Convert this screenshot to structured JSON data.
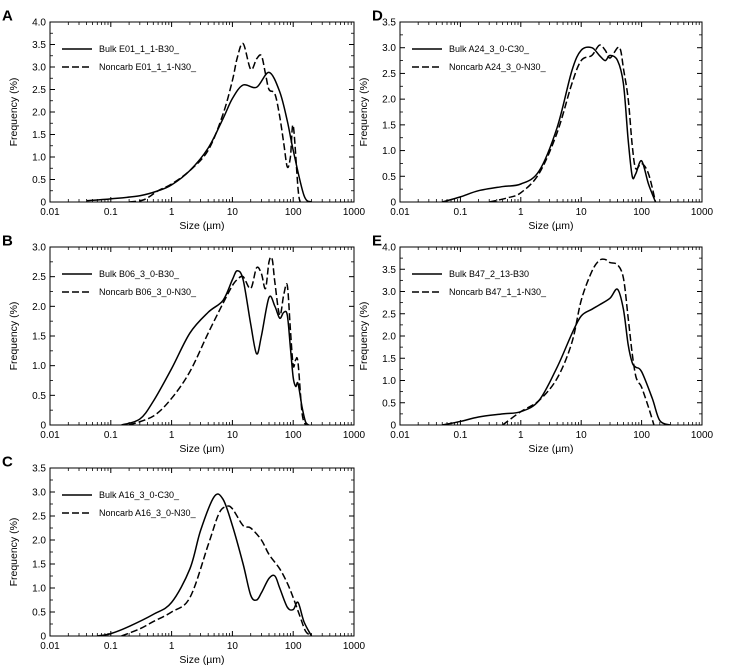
{
  "chart_data": [
    {
      "panel": "A",
      "type": "line",
      "xlabel": "Size (µm)",
      "ylabel": "Frequency (%)",
      "xscale": "log",
      "xlim": [
        0.01,
        1000
      ],
      "ylim": [
        0,
        4.0
      ],
      "xticks": [
        "0.01",
        "0.1",
        "1",
        "10",
        "100",
        "1000"
      ],
      "yticks": [
        "0",
        "0.5",
        "1.0",
        "1.5",
        "2.0",
        "2.5",
        "3.0",
        "3.5",
        "4.0"
      ],
      "legend_position": "top-left",
      "series": [
        {
          "name": "Bulk E01_1_1-B30_",
          "style": "solid",
          "x": [
            0.04,
            0.1,
            0.3,
            0.6,
            1,
            2,
            4,
            7,
            10,
            15,
            25,
            40,
            60,
            80,
            100,
            150,
            200
          ],
          "y": [
            0.03,
            0.07,
            0.14,
            0.25,
            0.38,
            0.7,
            1.2,
            1.85,
            2.3,
            2.6,
            2.55,
            2.88,
            2.45,
            1.8,
            1.15,
            0.15,
            0.0
          ]
        },
        {
          "name": "Noncarb E01_1_1-N30_",
          "style": "dashed",
          "x": [
            0.2,
            0.35,
            0.6,
            1,
            2,
            4,
            7,
            10,
            12,
            15,
            20,
            25,
            30,
            35,
            40,
            50,
            60,
            70,
            80,
            90,
            100,
            120,
            130
          ],
          "y": [
            0.0,
            0.05,
            0.25,
            0.4,
            0.7,
            1.15,
            1.95,
            2.7,
            3.2,
            3.52,
            2.95,
            3.18,
            3.25,
            2.85,
            2.5,
            2.4,
            1.9,
            1.3,
            0.78,
            1.0,
            1.7,
            0.3,
            0.0
          ]
        }
      ]
    },
    {
      "panel": "B",
      "type": "line",
      "xlabel": "Size (µm)",
      "ylabel": "Frequency (%)",
      "xscale": "log",
      "xlim": [
        0.01,
        1000
      ],
      "ylim": [
        0,
        3.0
      ],
      "xticks": [
        "0.01",
        "0.1",
        "1",
        "10",
        "100",
        "1000"
      ],
      "yticks": [
        "0",
        "0.5",
        "1.0",
        "1.5",
        "2.0",
        "2.5",
        "3.0"
      ],
      "legend_position": "top-left",
      "series": [
        {
          "name": "Bulk B06_3_0-B30_",
          "style": "solid",
          "x": [
            0.15,
            0.3,
            0.5,
            1,
            2,
            4,
            7,
            10,
            12,
            15,
            20,
            25,
            30,
            40,
            50,
            60,
            70,
            80,
            90,
            100,
            110,
            120,
            140,
            160,
            180
          ],
          "y": [
            0.0,
            0.1,
            0.4,
            0.95,
            1.55,
            1.9,
            2.1,
            2.45,
            2.6,
            2.45,
            1.7,
            1.2,
            1.5,
            2.15,
            2.0,
            1.8,
            1.9,
            1.85,
            1.3,
            0.8,
            0.65,
            0.7,
            0.3,
            0.05,
            0.0
          ]
        },
        {
          "name": "Noncarb B06_3_0-N30_",
          "style": "dashed",
          "x": [
            0.2,
            0.5,
            1,
            2,
            4,
            7,
            10,
            12,
            15,
            20,
            25,
            30,
            35,
            40,
            45,
            50,
            60,
            70,
            80,
            90,
            100,
            110,
            120,
            140,
            160
          ],
          "y": [
            0.0,
            0.15,
            0.45,
            0.9,
            1.55,
            2.05,
            2.35,
            2.45,
            2.5,
            2.3,
            2.65,
            2.55,
            2.3,
            2.75,
            2.8,
            2.4,
            1.85,
            2.2,
            2.35,
            1.6,
            1.0,
            1.1,
            1.05,
            0.2,
            0.0
          ]
        }
      ]
    },
    {
      "panel": "C",
      "type": "line",
      "xlabel": "Size (µm)",
      "ylabel": "Frequency (%)",
      "xscale": "log",
      "xlim": [
        0.01,
        1000
      ],
      "ylim": [
        0,
        3.5
      ],
      "xticks": [
        "0.01",
        "0.1",
        "1",
        "10",
        "100",
        "1000"
      ],
      "yticks": [
        "0",
        "0.5",
        "1.0",
        "1.5",
        "2.0",
        "2.5",
        "3.0",
        "3.5"
      ],
      "legend_position": "top-left",
      "series": [
        {
          "name": "Bulk A16_3_0-C30_",
          "style": "solid",
          "x": [
            0.06,
            0.1,
            0.2,
            0.5,
            1,
            2,
            3,
            5,
            7,
            10,
            15,
            20,
            25,
            30,
            40,
            50,
            60,
            80,
            100,
            120,
            150,
            200
          ],
          "y": [
            0.0,
            0.05,
            0.2,
            0.45,
            0.7,
            1.4,
            2.2,
            2.9,
            2.85,
            2.3,
            1.5,
            0.85,
            0.75,
            0.9,
            1.2,
            1.25,
            1.0,
            0.6,
            0.55,
            0.7,
            0.3,
            0.0
          ]
        },
        {
          "name": "Noncarb A16_3_0-N30_",
          "style": "dashed",
          "x": [
            0.15,
            0.3,
            0.5,
            1,
            2,
            4,
            6,
            8,
            10,
            15,
            20,
            30,
            40,
            60,
            80,
            100,
            130,
            160,
            200
          ],
          "y": [
            0.0,
            0.15,
            0.3,
            0.5,
            0.8,
            1.9,
            2.55,
            2.7,
            2.65,
            2.3,
            2.25,
            2.0,
            1.7,
            1.4,
            1.1,
            0.8,
            0.4,
            0.1,
            0.0
          ]
        }
      ]
    },
    {
      "panel": "D",
      "type": "line",
      "xlabel": "Size (µm)",
      "ylabel": "Frequency (%)",
      "xscale": "log",
      "xlim": [
        0.01,
        1000
      ],
      "ylim": [
        0,
        3.5
      ],
      "xticks": [
        "0.01",
        "0.1",
        "1",
        "10",
        "100",
        "1000"
      ],
      "yticks": [
        "0",
        "0.5",
        "1.0",
        "1.5",
        "2.0",
        "2.5",
        "3.0",
        "3.5"
      ],
      "legend_position": "top-left",
      "series": [
        {
          "name": "Bulk A24_3_0-C30_",
          "style": "solid",
          "x": [
            0.05,
            0.1,
            0.2,
            0.5,
            1,
            2,
            4,
            7,
            10,
            15,
            20,
            25,
            30,
            40,
            50,
            60,
            70,
            80,
            100,
            130,
            170
          ],
          "y": [
            0.0,
            0.1,
            0.22,
            0.3,
            0.35,
            0.6,
            1.45,
            2.55,
            2.95,
            3.0,
            2.85,
            2.75,
            2.85,
            2.75,
            2.3,
            1.2,
            0.5,
            0.55,
            0.8,
            0.35,
            0.0
          ]
        },
        {
          "name": "Noncarb A24_3_0-N30_",
          "style": "dashed",
          "x": [
            0.3,
            0.6,
            1,
            2,
            4,
            7,
            10,
            15,
            20,
            25,
            30,
            40,
            45,
            50,
            60,
            70,
            80,
            100,
            130,
            170
          ],
          "y": [
            0.0,
            0.08,
            0.18,
            0.55,
            1.35,
            2.3,
            2.75,
            2.85,
            3.05,
            2.95,
            2.8,
            3.0,
            2.95,
            2.6,
            2.0,
            1.1,
            0.65,
            0.75,
            0.55,
            0.0
          ]
        }
      ]
    },
    {
      "panel": "E",
      "type": "line",
      "xlabel": "Size (µm)",
      "ylabel": "Frequency (%)",
      "xscale": "log",
      "xlim": [
        0.01,
        1000
      ],
      "ylim": [
        0,
        4.0
      ],
      "xticks": [
        "0.01",
        "0.1",
        "1",
        "10",
        "100",
        "1000"
      ],
      "yticks": [
        "0",
        "0.5",
        "1.0",
        "1.5",
        "2.0",
        "2.5",
        "3.0",
        "3.5",
        "4.0"
      ],
      "legend_position": "top-left",
      "series": [
        {
          "name": "Bulk B47_2_13-B30",
          "style": "solid",
          "x": [
            0.05,
            0.1,
            0.2,
            0.5,
            1,
            2,
            4,
            7,
            10,
            15,
            20,
            30,
            40,
            50,
            60,
            70,
            80,
            100,
            150,
            200,
            300
          ],
          "y": [
            0.0,
            0.08,
            0.18,
            0.25,
            0.3,
            0.55,
            1.3,
            2.05,
            2.45,
            2.6,
            2.7,
            2.85,
            3.05,
            2.6,
            1.8,
            1.4,
            1.3,
            1.2,
            0.6,
            0.1,
            0.0
          ]
        },
        {
          "name": "Noncarb B47_1_1-N30_",
          "style": "dashed",
          "x": [
            0.5,
            1,
            2,
            4,
            7,
            10,
            15,
            20,
            25,
            30,
            40,
            50,
            60,
            70,
            80,
            90,
            100,
            130,
            160
          ],
          "y": [
            0.0,
            0.3,
            0.55,
            1.05,
            1.85,
            2.8,
            3.45,
            3.7,
            3.72,
            3.65,
            3.6,
            3.3,
            2.4,
            1.6,
            1.1,
            0.95,
            0.85,
            0.4,
            0.0
          ]
        }
      ]
    }
  ]
}
